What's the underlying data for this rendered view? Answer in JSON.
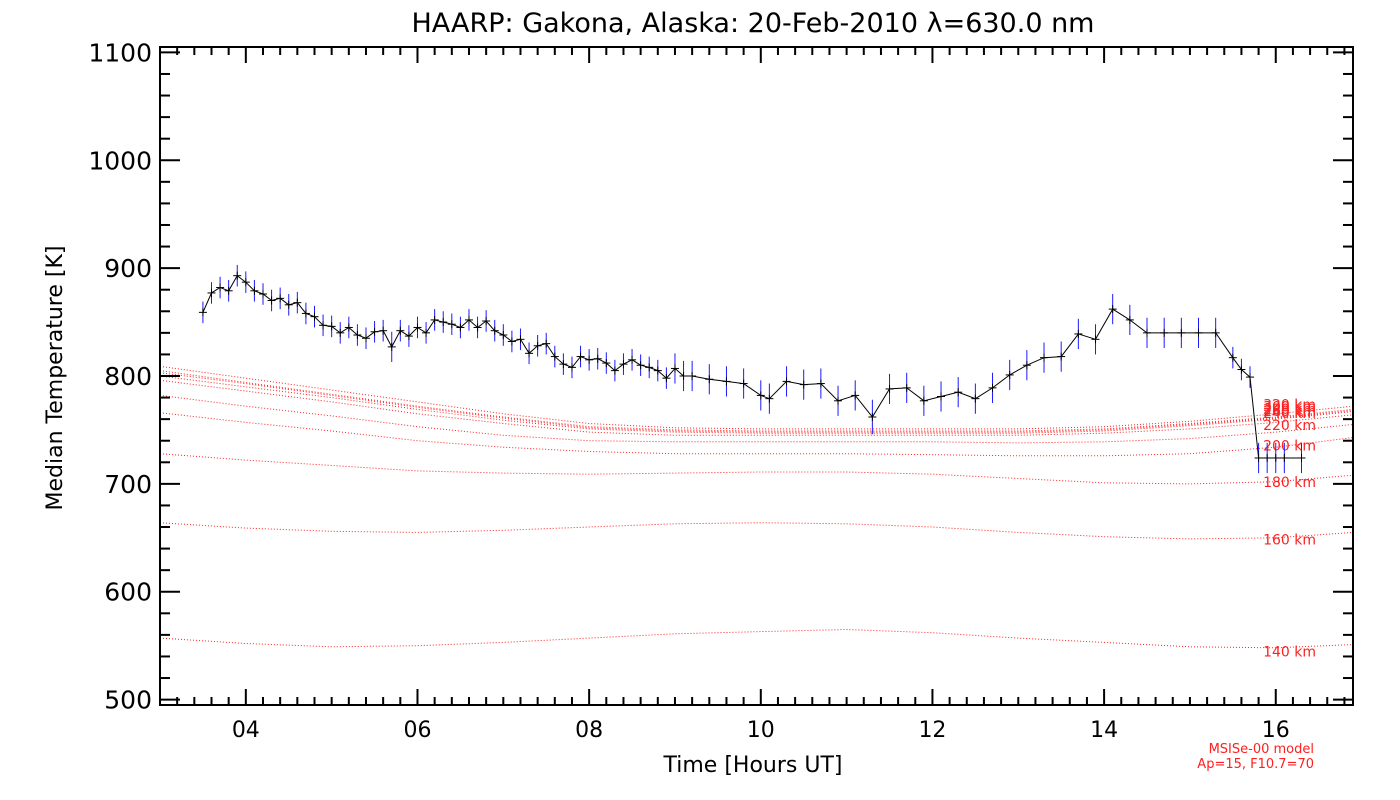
{
  "chart_data": {
    "type": "line",
    "title": "HAARP: Gakona,  Alaska: 20-Feb-2010 λ=630.0 nm",
    "xlabel": "Time [Hours UT]",
    "ylabel": "Median Temperature [K]",
    "xlim": [
      3.0,
      16.9
    ],
    "ylim": [
      495,
      1105
    ],
    "xticks": [
      4,
      6,
      8,
      10,
      12,
      14,
      16
    ],
    "xtick_labels": [
      "04",
      "06",
      "08",
      "10",
      "12",
      "14",
      "16"
    ],
    "yticks": [
      500,
      600,
      700,
      800,
      900,
      1000,
      1100
    ],
    "ytick_labels": [
      "500",
      "600",
      "700",
      "800",
      "900",
      "1000",
      "1100"
    ],
    "grid": false,
    "legend": "none",
    "colors": {
      "measured": "#000000",
      "error_bars": "#1a1aff",
      "model": "#ff2020"
    },
    "series": [
      {
        "kind": "measured",
        "x": [
          3.5,
          3.6,
          3.7,
          3.8,
          3.9,
          4.0,
          4.1,
          4.2,
          4.3,
          4.4,
          4.5,
          4.6,
          4.7,
          4.8,
          4.9,
          5.0,
          5.1,
          5.2,
          5.3,
          5.4,
          5.5,
          5.6,
          5.7,
          5.8,
          5.9,
          6.0,
          6.1,
          6.2,
          6.3,
          6.4,
          6.5,
          6.6,
          6.7,
          6.8,
          6.9,
          7.0,
          7.1,
          7.2,
          7.3,
          7.4,
          7.5,
          7.6,
          7.7,
          7.8,
          7.9,
          8.0,
          8.1,
          8.2,
          8.3,
          8.4,
          8.5,
          8.6,
          8.7,
          8.8,
          8.9,
          9.0,
          9.1,
          9.2,
          9.4,
          9.6,
          9.8,
          10.0,
          10.1,
          10.3,
          10.5,
          10.7,
          10.9,
          11.1,
          11.3,
          11.5,
          11.7,
          11.9,
          12.1,
          12.3,
          12.5,
          12.7,
          12.9,
          13.1,
          13.3,
          13.5,
          13.7,
          13.9,
          14.1,
          14.3,
          14.5,
          14.7,
          14.9,
          15.1,
          15.3,
          15.5,
          15.6,
          15.7,
          15.8,
          15.9,
          16.0,
          16.1,
          16.3
        ],
        "y": [
          859,
          877,
          882,
          879,
          893,
          887,
          879,
          876,
          870,
          872,
          866,
          868,
          858,
          855,
          847,
          846,
          840,
          845,
          838,
          835,
          841,
          842,
          827,
          842,
          837,
          845,
          840,
          852,
          850,
          848,
          845,
          852,
          845,
          851,
          842,
          838,
          832,
          834,
          821,
          828,
          830,
          818,
          811,
          808,
          818,
          815,
          816,
          812,
          805,
          811,
          815,
          810,
          808,
          805,
          798,
          807,
          800,
          800,
          797,
          795,
          793,
          782,
          779,
          795,
          792,
          793,
          777,
          782,
          762,
          788,
          789,
          777,
          781,
          785,
          779,
          789,
          801,
          810,
          817,
          818,
          839,
          834,
          862,
          852,
          840,
          840,
          840,
          840,
          840,
          817,
          806,
          799,
          724,
          724,
          724,
          724,
          724
        ],
        "err": [
          10,
          10,
          10,
          10,
          10,
          10,
          10,
          10,
          10,
          10,
          10,
          10,
          10,
          10,
          10,
          10,
          10,
          10,
          10,
          10,
          10,
          10,
          14,
          10,
          10,
          10,
          10,
          10,
          10,
          10,
          10,
          10,
          10,
          10,
          10,
          10,
          10,
          10,
          10,
          10,
          10,
          10,
          10,
          10,
          10,
          10,
          10,
          10,
          10,
          10,
          10,
          10,
          10,
          10,
          10,
          14,
          14,
          14,
          14,
          14,
          14,
          14,
          14,
          14,
          14,
          14,
          14,
          14,
          16,
          14,
          14,
          14,
          14,
          14,
          14,
          14,
          14,
          14,
          14,
          14,
          14,
          14,
          14,
          14,
          14,
          14,
          14,
          14,
          14,
          10,
          10,
          10,
          14,
          14,
          14,
          14,
          14
        ]
      },
      {
        "kind": "model",
        "name": "140 km",
        "x": [
          3.0,
          4.0,
          5.0,
          6.0,
          7.0,
          8.0,
          9.0,
          10.0,
          11.0,
          12.0,
          13.0,
          14.0,
          15.0,
          16.0,
          16.9
        ],
        "y": [
          557,
          552,
          549,
          550,
          553,
          557,
          561,
          563,
          565,
          562,
          557,
          553,
          549,
          548,
          551
        ]
      },
      {
        "kind": "model",
        "name": "160 km",
        "x": [
          3.0,
          4.0,
          5.0,
          6.0,
          7.0,
          8.0,
          9.0,
          10.0,
          11.0,
          12.0,
          13.0,
          14.0,
          15.0,
          16.0,
          16.9
        ],
        "y": [
          664,
          659,
          656,
          655,
          657,
          660,
          663,
          664,
          663,
          660,
          655,
          651,
          649,
          650,
          655
        ]
      },
      {
        "kind": "model",
        "name": "180 km",
        "x": [
          3.0,
          4.0,
          5.0,
          6.0,
          7.0,
          8.0,
          9.0,
          10.0,
          11.0,
          12.0,
          13.0,
          14.0,
          15.0,
          16.0,
          16.9
        ],
        "y": [
          728,
          722,
          717,
          712,
          710,
          709,
          710,
          711,
          711,
          709,
          705,
          701,
          700,
          702,
          708
        ]
      },
      {
        "kind": "model",
        "name": "200 km",
        "x": [
          3.0,
          4.0,
          5.0,
          6.0,
          7.0,
          8.0,
          9.0,
          10.0,
          11.0,
          12.0,
          13.0,
          14.0,
          15.0,
          16.0,
          16.9
        ],
        "y": [
          766,
          757,
          749,
          740,
          734,
          730,
          728,
          728,
          728,
          727,
          726,
          726,
          728,
          734,
          743
        ]
      },
      {
        "kind": "model",
        "name": "220 km",
        "x": [
          3.0,
          4.0,
          5.0,
          6.0,
          7.0,
          8.0,
          9.0,
          10.0,
          11.0,
          12.0,
          13.0,
          14.0,
          15.0,
          16.0,
          16.9
        ],
        "y": [
          782,
          772,
          763,
          753,
          745,
          740,
          739,
          739,
          739,
          739,
          738,
          739,
          742,
          748,
          755
        ]
      },
      {
        "kind": "model",
        "name": "240 km",
        "x": [
          3.0,
          4.0,
          5.0,
          6.0,
          7.0,
          8.0,
          9.0,
          10.0,
          11.0,
          12.0,
          13.0,
          14.0,
          15.0,
          16.0,
          16.9
        ],
        "y": [
          796,
          786,
          776,
          765,
          756,
          748,
          745,
          745,
          745,
          745,
          745,
          747,
          751,
          757,
          764
        ]
      },
      {
        "kind": "model",
        "name": "260 km",
        "x": [
          3.0,
          4.0,
          5.0,
          6.0,
          7.0,
          8.0,
          9.0,
          10.0,
          11.0,
          12.0,
          13.0,
          14.0,
          15.0,
          16.0,
          16.9
        ],
        "y": [
          800,
          790,
          780,
          769,
          759,
          751,
          748,
          747,
          747,
          747,
          747,
          749,
          754,
          760,
          767
        ]
      },
      {
        "kind": "model",
        "name": "280 km",
        "x": [
          3.0,
          4.0,
          5.0,
          6.0,
          7.0,
          8.0,
          9.0,
          10.0,
          11.0,
          12.0,
          13.0,
          14.0,
          15.0,
          16.0,
          16.9
        ],
        "y": [
          803,
          793,
          782,
          771,
          761,
          752,
          749,
          748,
          748,
          748,
          748,
          750,
          755,
          761,
          768
        ]
      },
      {
        "kind": "model",
        "name": "300 km",
        "x": [
          3.0,
          4.0,
          5.0,
          6.0,
          7.0,
          8.0,
          9.0,
          10.0,
          11.0,
          12.0,
          13.0,
          14.0,
          15.0,
          16.0,
          16.9
        ],
        "y": [
          805,
          794,
          783,
          772,
          762,
          753,
          750,
          749,
          749,
          749,
          749,
          751,
          756,
          762,
          769
        ]
      },
      {
        "kind": "model",
        "name": "320 km",
        "x": [
          3.0,
          4.0,
          5.0,
          6.0,
          7.0,
          8.0,
          9.0,
          10.0,
          11.0,
          12.0,
          13.0,
          14.0,
          15.0,
          16.0,
          16.9
        ],
        "y": [
          809,
          798,
          787,
          776,
          765,
          756,
          752,
          751,
          751,
          751,
          751,
          753,
          758,
          765,
          772
        ]
      }
    ],
    "model_label_items": [
      {
        "text": "140 km",
        "y": 540
      },
      {
        "text": "160 km",
        "y": 644
      },
      {
        "text": "180 km",
        "y": 697
      },
      {
        "text": "200 km",
        "y": 731
      },
      {
        "text": "220 km",
        "y": 750
      },
      {
        "text": "240 km",
        "y": 761
      },
      {
        "text": "260 km",
        "y": 763
      },
      {
        "text": "280 km",
        "y": 765
      },
      {
        "text": "300 km",
        "y": 767
      },
      {
        "text": "320 km",
        "y": 769
      }
    ],
    "annotations": [
      "MSISe-00 model",
      "Ap=15, F10.7=70"
    ]
  }
}
